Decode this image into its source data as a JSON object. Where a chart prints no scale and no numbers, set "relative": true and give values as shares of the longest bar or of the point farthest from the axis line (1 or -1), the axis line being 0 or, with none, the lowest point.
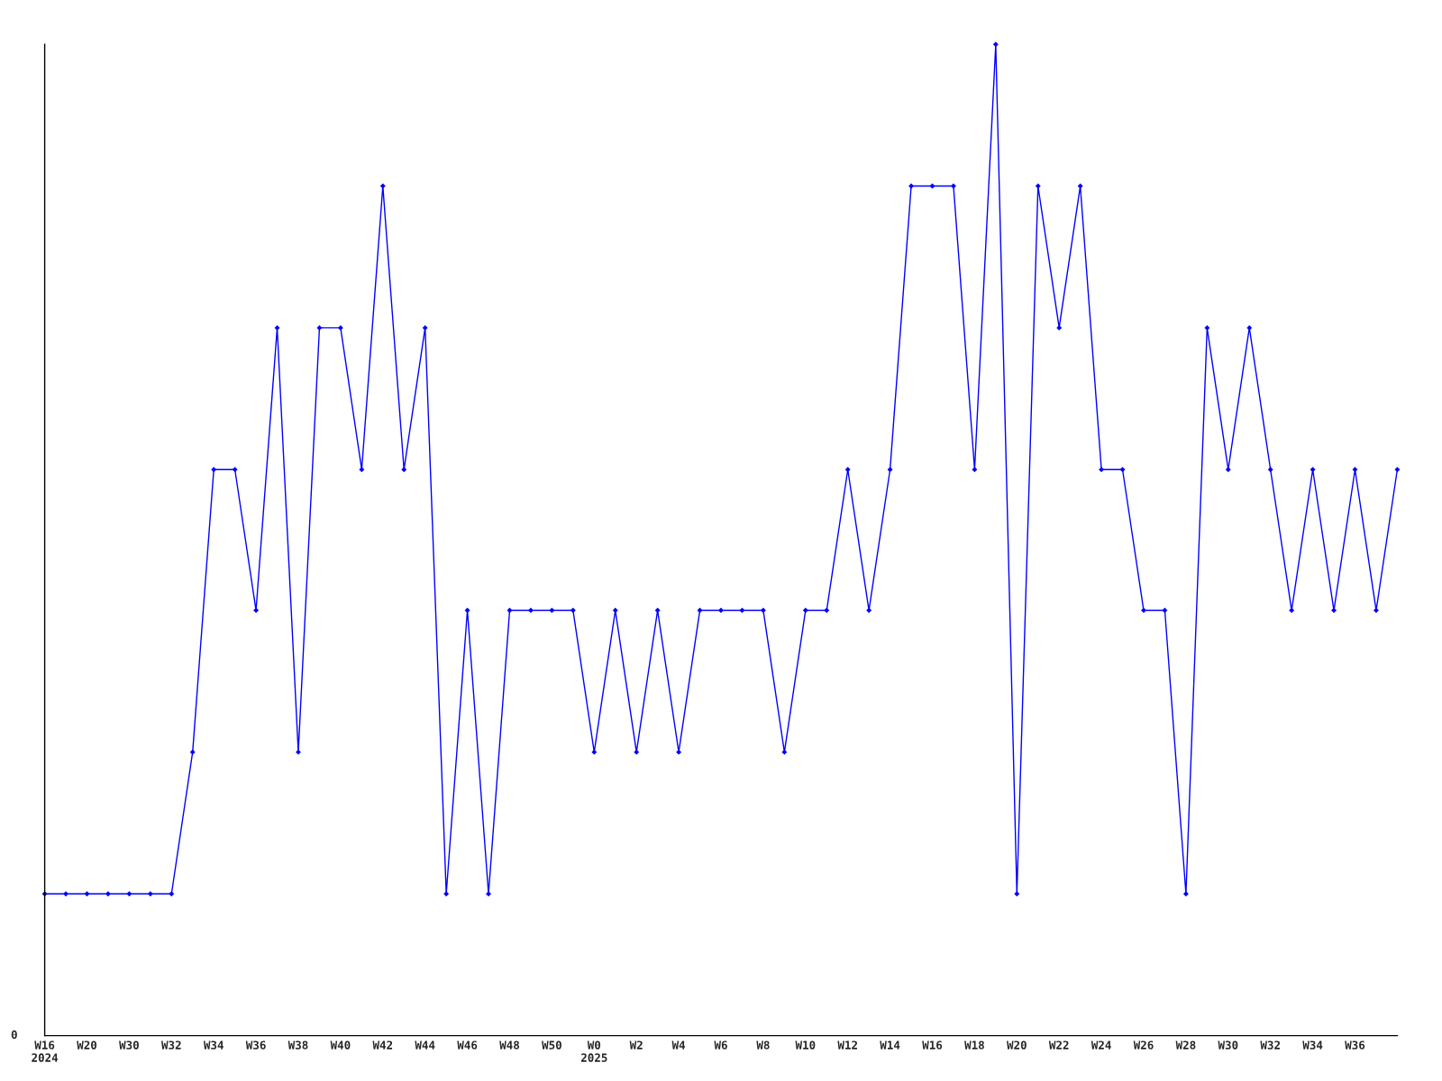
{
  "chart_data": {
    "type": "line",
    "relative": true,
    "marker": "diamond",
    "line_style": "solid",
    "grid": false,
    "legend": false,
    "annotations": [
      "0"
    ],
    "categories": [
      "W16\n2024",
      null,
      "W20",
      null,
      "W30",
      null,
      "W32",
      null,
      "W34",
      null,
      "W36",
      null,
      "W38",
      null,
      "W40",
      null,
      "W42",
      null,
      "W44",
      null,
      "W46",
      null,
      "W48",
      null,
      "W50",
      null,
      "W0\n2025",
      null,
      "W2",
      null,
      "W4",
      null,
      "W6",
      null,
      "W8",
      null,
      "W10",
      null,
      "W12",
      null,
      "W14",
      null,
      "W16",
      null,
      "W18",
      null,
      "W20",
      null,
      "W22",
      null,
      "W24",
      null,
      "W26",
      null,
      "W28",
      null,
      "W30",
      null,
      "W32",
      null,
      "W34",
      null,
      "W36",
      null,
      null
    ],
    "series": [
      {
        "color": "#0000ff",
        "values": [
          0.143,
          0.143,
          0.143,
          0.143,
          0.143,
          0.143,
          0.143,
          0.286,
          0.571,
          0.571,
          0.429,
          0.714,
          0.286,
          0.714,
          0.714,
          0.571,
          0.857,
          0.571,
          0.714,
          0.143,
          0.429,
          0.143,
          0.429,
          0.429,
          0.429,
          0.429,
          0.286,
          0.429,
          0.286,
          0.429,
          0.286,
          0.429,
          0.429,
          0.429,
          0.429,
          0.286,
          0.429,
          0.429,
          0.571,
          0.429,
          0.571,
          0.857,
          0.857,
          0.857,
          0.571,
          1,
          0.143,
          0.857,
          0.714,
          0.857,
          0.571,
          0.571,
          0.429,
          0.429,
          0.143,
          0.714,
          0.571,
          0.714,
          0.571,
          0.429,
          0.571,
          0.429,
          0.571,
          0.429,
          0.571
        ]
      }
    ]
  }
}
